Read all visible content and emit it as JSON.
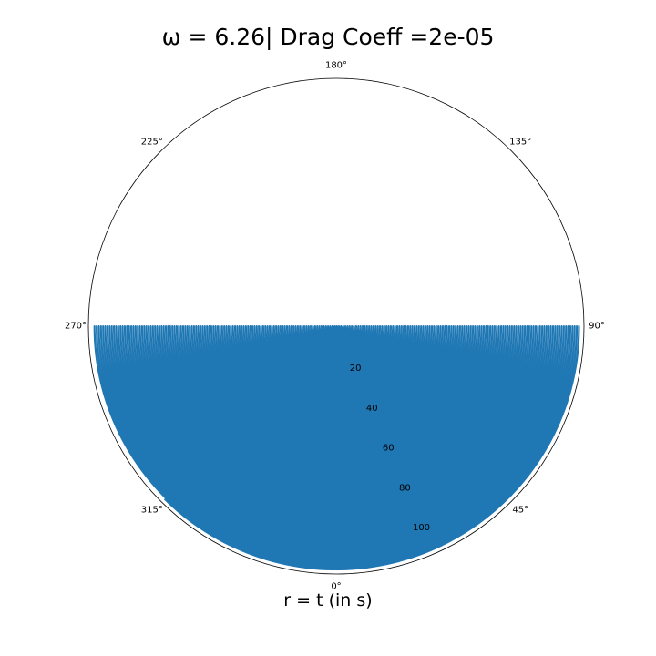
{
  "chart_data": {
    "type": "line",
    "projection": "polar",
    "title": "ω = 6.26| Drag Coeff =2e-05",
    "xlabel": "r = t (in s)",
    "theta_zero_location": "S",
    "theta_direction": "counterclockwise",
    "theta_ticks": [
      "0°",
      "45°",
      "90°",
      "135°",
      "180°",
      "225°",
      "270°",
      "315°"
    ],
    "theta_tick_values_deg": [
      0,
      45,
      90,
      135,
      180,
      225,
      270,
      315
    ],
    "r_ticks": [
      "20",
      "40",
      "60",
      "80",
      "100"
    ],
    "r_tick_values": [
      20,
      40,
      60,
      80,
      100
    ],
    "rlim": [
      0,
      115
    ],
    "r_tick_label_angle_deg": 22.5,
    "grid": false,
    "series": [
      {
        "color": "#1f77b4",
        "omega": 6.26,
        "t_range": [
          0,
          113
        ],
        "theta_amplitude_deg": 90,
        "description_of_curve": "theta(t) = A * sin(omega * t), r = t"
      }
    ]
  }
}
